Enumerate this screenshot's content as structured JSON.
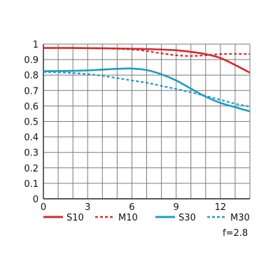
{
  "chart_data": {
    "type": "line",
    "xlim": [
      0,
      14
    ],
    "ylim": [
      0,
      1
    ],
    "x_ticks": [
      "0",
      "3",
      "6",
      "9",
      "12"
    ],
    "x_tick_values": [
      0,
      3,
      6,
      9,
      12
    ],
    "y_ticks": [
      "0",
      "0.1",
      "0.2",
      "0.3",
      "0.4",
      "0.5",
      "0.6",
      "0.7",
      "0.8",
      "0.9",
      "1"
    ],
    "y_tick_values": [
      0,
      0.1,
      0.2,
      0.3,
      0.4,
      0.5,
      0.6,
      0.7,
      0.8,
      0.9,
      1
    ],
    "grid": "on",
    "legend_position": "bottom",
    "annotation": "f=2.8",
    "series": [
      {
        "name": "S10",
        "color": "#d42a2f",
        "dash": "solid",
        "x": [
          0,
          2,
          4,
          6,
          8,
          9,
          10,
          11,
          12,
          13,
          14
        ],
        "y": [
          0.975,
          0.975,
          0.973,
          0.97,
          0.965,
          0.96,
          0.95,
          0.935,
          0.91,
          0.865,
          0.815
        ]
      },
      {
        "name": "M10",
        "color": "#d42a2f",
        "dash": "dashed",
        "x": [
          0,
          2,
          4,
          6,
          7,
          8,
          9,
          10,
          11,
          12,
          13,
          14
        ],
        "y": [
          0.975,
          0.975,
          0.972,
          0.965,
          0.955,
          0.94,
          0.928,
          0.923,
          0.928,
          0.935,
          0.937,
          0.935
        ]
      },
      {
        "name": "S30",
        "color": "#1f9cc4",
        "dash": "solid",
        "x": [
          0,
          1,
          2,
          3,
          4,
          5,
          6,
          7,
          8,
          9,
          10,
          11,
          12,
          13,
          14
        ],
        "y": [
          0.825,
          0.826,
          0.827,
          0.83,
          0.835,
          0.84,
          0.842,
          0.832,
          0.805,
          0.765,
          0.712,
          0.66,
          0.62,
          0.592,
          0.565
        ]
      },
      {
        "name": "M30",
        "color": "#1f9cc4",
        "dash": "dashed",
        "x": [
          0,
          1,
          2,
          3,
          4,
          5,
          6,
          7,
          8,
          9,
          10,
          11,
          12,
          13,
          14
        ],
        "y": [
          0.82,
          0.818,
          0.813,
          0.806,
          0.795,
          0.78,
          0.765,
          0.75,
          0.73,
          0.71,
          0.688,
          0.665,
          0.64,
          0.615,
          0.595
        ]
      }
    ]
  }
}
